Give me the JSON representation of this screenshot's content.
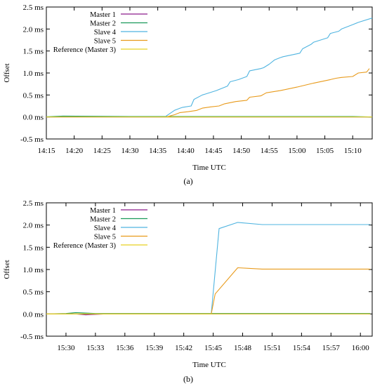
{
  "chart_data": [
    {
      "type": "line",
      "panel_label": "(a)",
      "xlabel": "Time UTC",
      "ylabel": "Offset",
      "ylim": [
        -0.5,
        2.5
      ],
      "yticks": [
        -0.5,
        0.0,
        0.5,
        1.0,
        1.5,
        2.0,
        2.5
      ],
      "ytick_labels": [
        "-0.5 ms",
        "0.0 ms",
        "0.5 ms",
        "1.0 ms",
        "1.5 ms",
        "2.0 ms",
        "2.5 ms"
      ],
      "xlim": [
        0,
        58.5
      ],
      "xticks": [
        0,
        5,
        10,
        15,
        20,
        25,
        30,
        35,
        40,
        45,
        50,
        55
      ],
      "xtick_labels": [
        "14:15",
        "14:20",
        "14:25",
        "14:30",
        "14:35",
        "14:40",
        "14:45",
        "14:50",
        "14:55",
        "15:00",
        "15:05",
        "15:10"
      ],
      "legend_position": "top-left",
      "series": [
        {
          "name": "Master 1",
          "color": "#8b1a8b",
          "x": [
            0,
            10,
            20,
            30,
            40,
            50,
            58.5
          ],
          "y": [
            0,
            0,
            0,
            0,
            0,
            0,
            0
          ]
        },
        {
          "name": "Master 2",
          "color": "#1a9a5a",
          "x": [
            0,
            3,
            8,
            15,
            25,
            35,
            45,
            55,
            58.5
          ],
          "y": [
            0.005,
            0.02,
            0.015,
            0.01,
            0.01,
            0.01,
            0.01,
            0.01,
            0.0
          ]
        },
        {
          "name": "Slave 4",
          "color": "#4fb4e0",
          "x": [
            21.5,
            23,
            24,
            24.5,
            26,
            26.5,
            28,
            28.5,
            30.5,
            32.5,
            33,
            34.5,
            36,
            36.5,
            38.5,
            39,
            40,
            41,
            42,
            42.5,
            45.5,
            46,
            47.5,
            48,
            50.5,
            51,
            52.5,
            53,
            55,
            56,
            58.5
          ],
          "y": [
            0.02,
            0.15,
            0.2,
            0.22,
            0.25,
            0.4,
            0.5,
            0.52,
            0.6,
            0.7,
            0.8,
            0.85,
            0.92,
            1.05,
            1.1,
            1.12,
            1.2,
            1.3,
            1.35,
            1.37,
            1.45,
            1.55,
            1.65,
            1.7,
            1.8,
            1.9,
            1.95,
            2.0,
            2.1,
            2.15,
            2.25
          ]
        },
        {
          "name": "Slave 5",
          "color": "#e89a1a",
          "x": [
            21.5,
            23,
            24,
            25.5,
            27,
            28,
            29.5,
            31,
            32,
            34,
            36,
            36.5,
            38.5,
            39.5,
            42,
            45,
            48,
            51,
            52,
            53,
            55,
            56,
            57.5,
            58
          ],
          "y": [
            0.0,
            0.05,
            0.1,
            0.12,
            0.15,
            0.2,
            0.23,
            0.25,
            0.3,
            0.35,
            0.38,
            0.45,
            0.48,
            0.55,
            0.6,
            0.68,
            0.77,
            0.85,
            0.88,
            0.9,
            0.92,
            1.0,
            1.02,
            1.1
          ]
        },
        {
          "name": "Reference (Master 3)",
          "color": "#e8d020",
          "x": [
            0,
            58.5
          ],
          "y": [
            0,
            0
          ]
        }
      ]
    },
    {
      "type": "line",
      "panel_label": "(b)",
      "xlabel": "Time UTC",
      "ylabel": "Offset",
      "ylim": [
        -0.5,
        2.5
      ],
      "yticks": [
        -0.5,
        0.0,
        0.5,
        1.0,
        1.5,
        2.0,
        2.5
      ],
      "ytick_labels": [
        "-0.5 ms",
        "0.0 ms",
        "0.5 ms",
        "1.0 ms",
        "1.5 ms",
        "2.0 ms",
        "2.5 ms"
      ],
      "xlim": [
        0,
        33.2
      ],
      "xticks": [
        2,
        5,
        8,
        11,
        14,
        17,
        20,
        23,
        26,
        29,
        32
      ],
      "xtick_labels": [
        "15:30",
        "15:33",
        "15:36",
        "15:39",
        "15:42",
        "15:45",
        "15:48",
        "15:51",
        "15:54",
        "15:57",
        "16:00"
      ],
      "legend_position": "top-left",
      "series": [
        {
          "name": "Master 1",
          "color": "#8b1a8b",
          "x": [
            0,
            3,
            4,
            5,
            6,
            8,
            15,
            20,
            33
          ],
          "y": [
            0,
            0.0,
            -0.02,
            -0.01,
            0.0,
            0.0,
            0.0,
            0.0,
            0.0
          ]
        },
        {
          "name": "Master 2",
          "color": "#1a9a5a",
          "x": [
            0,
            2,
            3,
            4,
            5,
            7,
            10,
            15,
            20,
            33
          ],
          "y": [
            0.0,
            0.01,
            0.03,
            0.02,
            0.01,
            0.01,
            0.01,
            0.01,
            0.01,
            0.01
          ]
        },
        {
          "name": "Slave 4",
          "color": "#4fb4e0",
          "x": [
            0,
            16.8,
            17.6,
            19.5,
            22,
            33
          ],
          "y": [
            0.0,
            0.0,
            1.92,
            2.06,
            2.01,
            2.01
          ]
        },
        {
          "name": "Slave 5",
          "color": "#e89a1a",
          "x": [
            0,
            16.8,
            17.2,
            19.5,
            22,
            33
          ],
          "y": [
            0.0,
            0.0,
            0.45,
            1.04,
            1.01,
            1.01
          ]
        },
        {
          "name": "Reference (Master 3)",
          "color": "#e8d020",
          "x": [
            0,
            33
          ],
          "y": [
            0,
            0
          ]
        }
      ]
    }
  ]
}
